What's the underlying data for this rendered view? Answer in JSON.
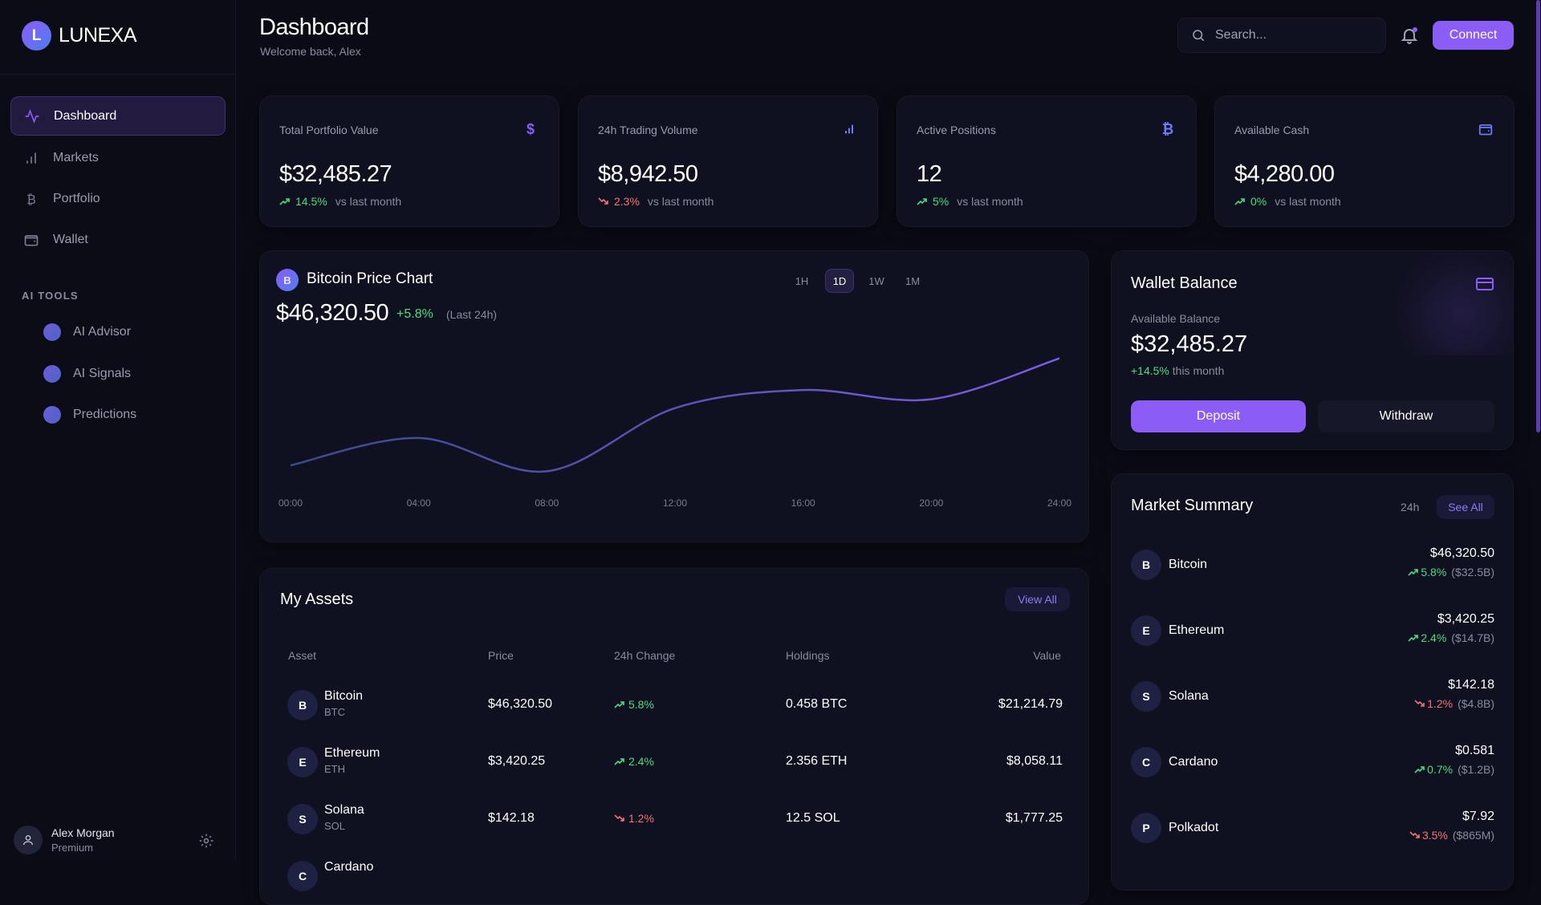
{
  "brand": {
    "initial": "L",
    "name": "LUNEXA"
  },
  "sidebar": {
    "items": [
      {
        "label": "Dashboard",
        "icon": "activity-icon",
        "active": true
      },
      {
        "label": "Markets",
        "icon": "bar-chart-icon"
      },
      {
        "label": "Portfolio",
        "icon": "bitcoin-icon"
      },
      {
        "label": "Wallet",
        "icon": "wallet-icon"
      }
    ],
    "section_label": "AI TOOLS",
    "ai_items": [
      {
        "label": "AI Advisor"
      },
      {
        "label": "AI Signals"
      },
      {
        "label": "Predictions"
      }
    ],
    "user": {
      "name": "Alex Morgan",
      "plan": "Premium"
    }
  },
  "header": {
    "title": "Dashboard",
    "subtitle": "Welcome back, Alex",
    "search_placeholder": "Search...",
    "connect_label": "Connect"
  },
  "stats": [
    {
      "label": "Total Portfolio Value",
      "value": "$32,485.27",
      "change": "14.5%",
      "direction": "up",
      "note": "vs last month",
      "icon": "$"
    },
    {
      "label": "24h Trading Volume",
      "value": "$8,942.50",
      "change": "2.3%",
      "direction": "down",
      "note": "vs last month",
      "icon": "bar-chart-icon"
    },
    {
      "label": "Active Positions",
      "value": "12",
      "change": "5%",
      "direction": "up",
      "note": "vs last month",
      "icon": "₿"
    },
    {
      "label": "Available Cash",
      "value": "$4,280.00",
      "change": "0%",
      "direction": "up",
      "note": "vs last month",
      "icon": "wallet-icon"
    }
  ],
  "price_chart": {
    "coin_initial": "B",
    "title": "Bitcoin Price Chart",
    "price": "$46,320.50",
    "change": "+5.8%",
    "period": "(Last 24h)",
    "ranges": [
      "1H",
      "1D",
      "1W",
      "1M"
    ],
    "active_range": "1D"
  },
  "chart_data": {
    "type": "line",
    "x": [
      "00:00",
      "04:00",
      "08:00",
      "12:00",
      "16:00",
      "20:00",
      "24:00"
    ],
    "series": [
      {
        "values": [
          43780,
          44430,
          43640,
          45140,
          45570,
          45350,
          46320
        ]
      }
    ],
    "ylim": [
      43000,
      47000
    ],
    "grid": false,
    "colors": [
      "#3b4a8a",
      "#7c5ce0"
    ]
  },
  "wallet": {
    "title": "Wallet Balance",
    "available_label": "Available Balance",
    "balance": "$32,485.27",
    "change": "+14.5%",
    "change_note": "this month",
    "deposit_label": "Deposit",
    "withdraw_label": "Withdraw"
  },
  "market": {
    "title": "Market Summary",
    "period": "24h",
    "see_all": "See All",
    "rows": [
      {
        "initial": "B",
        "name": "Bitcoin",
        "price": "$46,320.50",
        "change": "5.8%",
        "cap": "($32.5B)",
        "direction": "up"
      },
      {
        "initial": "E",
        "name": "Ethereum",
        "price": "$3,420.25",
        "change": "2.4%",
        "cap": "($14.7B)",
        "direction": "up"
      },
      {
        "initial": "S",
        "name": "Solana",
        "price": "$142.18",
        "change": "1.2%",
        "cap": "($4.8B)",
        "direction": "down"
      },
      {
        "initial": "C",
        "name": "Cardano",
        "price": "$0.581",
        "change": "0.7%",
        "cap": "($1.2B)",
        "direction": "up"
      },
      {
        "initial": "P",
        "name": "Polkadot",
        "price": "$7.92",
        "change": "3.5%",
        "cap": "($865M)",
        "direction": "down"
      }
    ]
  },
  "assets": {
    "title": "My Assets",
    "view_all": "View All",
    "columns": [
      "Asset",
      "Price",
      "24h Change",
      "Holdings",
      "Value"
    ],
    "rows": [
      {
        "initial": "B",
        "name": "Bitcoin",
        "symbol": "BTC",
        "price": "$46,320.50",
        "change": "5.8%",
        "direction": "up",
        "holdings": "0.458 BTC",
        "value": "$21,214.79"
      },
      {
        "initial": "E",
        "name": "Ethereum",
        "symbol": "ETH",
        "price": "$3,420.25",
        "change": "2.4%",
        "direction": "up",
        "holdings": "2.356 ETH",
        "value": "$8,058.11"
      },
      {
        "initial": "S",
        "name": "Solana",
        "symbol": "SOL",
        "price": "$142.18",
        "change": "1.2%",
        "direction": "down",
        "holdings": "12.5 SOL",
        "value": "$1,777.25"
      },
      {
        "initial": "C",
        "name": "Cardano"
      }
    ]
  },
  "colors": {
    "accent": "#8b5cf6",
    "up": "#4ade80",
    "down": "#f87171",
    "background": "#0a0b14",
    "card": "#0f1020"
  }
}
